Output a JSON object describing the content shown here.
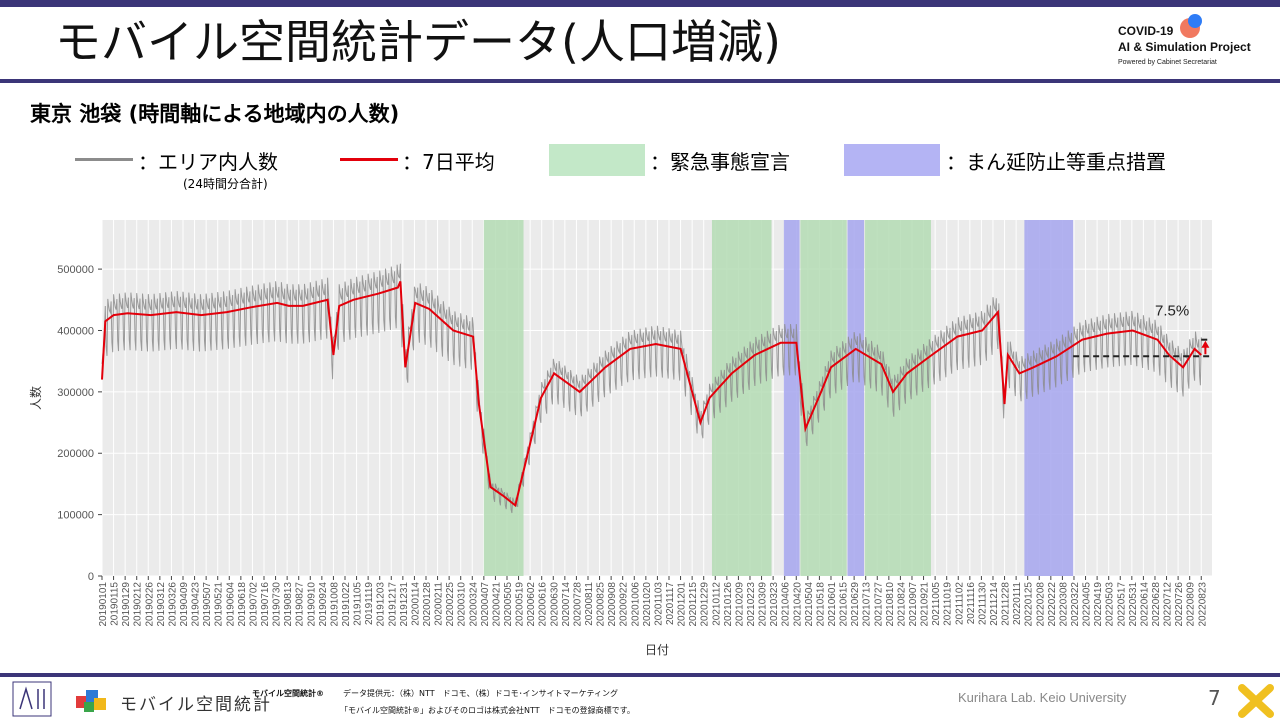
{
  "header": {
    "title": "モバイル空間統計データ(人口増減)",
    "logo_line1": "COVID-19",
    "logo_line2": "AI & Simulation Project",
    "logo_line3": "Powered by Cabinet Secretariat"
  },
  "subtitle": "東京 池袋 (時間軸による地域内の人数)",
  "legend": {
    "raw": "：エリア内人数",
    "raw_note": "(24時間分合計)",
    "avg": "：7日平均",
    "emergency": "：緊急事態宣言",
    "priority": "：まん延防止等重点措置"
  },
  "colors": {
    "raw": "#8c8c8c",
    "avg": "#e3000b",
    "emergency": "#b4dcb4",
    "priority": "#aaaaee",
    "panel": "#ebebeb",
    "header_bar": "#3b3578"
  },
  "chart_data": {
    "type": "line",
    "xlabel": "日付",
    "ylabel": "人数",
    "ylim": [
      0,
      580000
    ],
    "y_ticks": [
      0,
      100000,
      200000,
      300000,
      400000,
      500000
    ],
    "y_tick_labels": [
      "0",
      "100000",
      "200000",
      "300000",
      "400000",
      "500000"
    ],
    "x_tick_labels": [
      "20190101",
      "20190115",
      "20190129",
      "20190212",
      "20190226",
      "20190312",
      "20190326",
      "20190409",
      "20190423",
      "20190507",
      "20190521",
      "20190604",
      "20190618",
      "20190702",
      "20190716",
      "20190730",
      "20190813",
      "20190827",
      "20190910",
      "20190924",
      "20191008",
      "20191022",
      "20191105",
      "20191119",
      "20191203",
      "20191217",
      "20191231",
      "20200114",
      "20200128",
      "20200211",
      "20200225",
      "20200310",
      "20200324",
      "20200407",
      "20200421",
      "20200505",
      "20200519",
      "20200602",
      "20200616",
      "20200630",
      "20200714",
      "20200728",
      "20200811",
      "20200825",
      "20200908",
      "20200922",
      "20201006",
      "20201020",
      "20201103",
      "20201117",
      "20201201",
      "20201215",
      "20201229",
      "20210112",
      "20210126",
      "20210209",
      "20210223",
      "20210309",
      "20210323",
      "20210406",
      "20210420",
      "20210504",
      "20210518",
      "20210601",
      "20210615",
      "20210629",
      "20210713",
      "20210727",
      "20210810",
      "20210824",
      "20210907",
      "20210921",
      "20211005",
      "20211019",
      "20211102",
      "20211116",
      "20211130",
      "20211214",
      "20211228",
      "20220111",
      "20220125",
      "20220208",
      "20220222",
      "20220308",
      "20220322",
      "20220405",
      "20220419",
      "20220503",
      "20220517",
      "20220531",
      "20220614",
      "20220628",
      "20220712",
      "20220726",
      "20220809",
      "20220823"
    ],
    "emergency_periods": [
      [
        "20200407",
        "20200525"
      ],
      [
        "20210108",
        "20210321"
      ],
      [
        "20210425",
        "20210620"
      ],
      [
        "20210712",
        "20210930"
      ]
    ],
    "priority_periods": [
      [
        "20210405",
        "20210424"
      ],
      [
        "20210621",
        "20210711"
      ],
      [
        "20220121",
        "20220321"
      ]
    ],
    "series": [
      {
        "name": "7日平均",
        "x": [
          "20190101",
          "20190105",
          "20190115",
          "20190201",
          "20190301",
          "20190401",
          "20190501",
          "20190601",
          "20190701",
          "20190801",
          "20190815",
          "20190901",
          "20191001",
          "20191008",
          "20191015",
          "20191101",
          "20191201",
          "20191225",
          "20191228",
          "20200103",
          "20200115",
          "20200201",
          "20200301",
          "20200325",
          "20200401",
          "20200415",
          "20200501",
          "20200515",
          "20200601",
          "20200615",
          "20200701",
          "20200801",
          "20200901",
          "20201001",
          "20201101",
          "20201201",
          "20201225",
          "20210105",
          "20210115",
          "20210201",
          "20210301",
          "20210401",
          "20210420",
          "20210501",
          "20210520",
          "20210601",
          "20210701",
          "20210801",
          "20210815",
          "20210901",
          "20211001",
          "20211101",
          "20211201",
          "20211220",
          "20211228",
          "20220101",
          "20220115",
          "20220201",
          "20220301",
          "20220401",
          "20220501",
          "20220601",
          "20220701",
          "20220715",
          "20220801",
          "20220815",
          "20220823"
        ],
        "y": [
          320000,
          415000,
          425000,
          428000,
          425000,
          430000,
          425000,
          430000,
          438000,
          445000,
          440000,
          440000,
          450000,
          360000,
          440000,
          450000,
          460000,
          470000,
          480000,
          340000,
          445000,
          435000,
          400000,
          390000,
          280000,
          145000,
          130000,
          115000,
          210000,
          290000,
          330000,
          300000,
          340000,
          370000,
          378000,
          370000,
          250000,
          290000,
          305000,
          330000,
          360000,
          380000,
          380000,
          240000,
          300000,
          340000,
          370000,
          345000,
          300000,
          330000,
          360000,
          390000,
          400000,
          430000,
          280000,
          360000,
          330000,
          340000,
          358000,
          385000,
          395000,
          400000,
          385000,
          360000,
          340000,
          370000,
          360000
        ]
      }
    ],
    "baseline_value": 358000,
    "peak_value": 385000,
    "annotation": "7.5%"
  },
  "footer": {
    "brand": "モバイル空間統計",
    "mark_label": "モバイル空間統計®",
    "source": "データ提供元：（株）NTT　ドコモ、（株）ドコモ･インサイトマーケティング",
    "trademark": "「モバイル空間統計®」およびそのロゴは株式会社NTT　ドコモの登録商標です。",
    "lab": "Kurihara Lab. Keio University",
    "page": "7"
  }
}
